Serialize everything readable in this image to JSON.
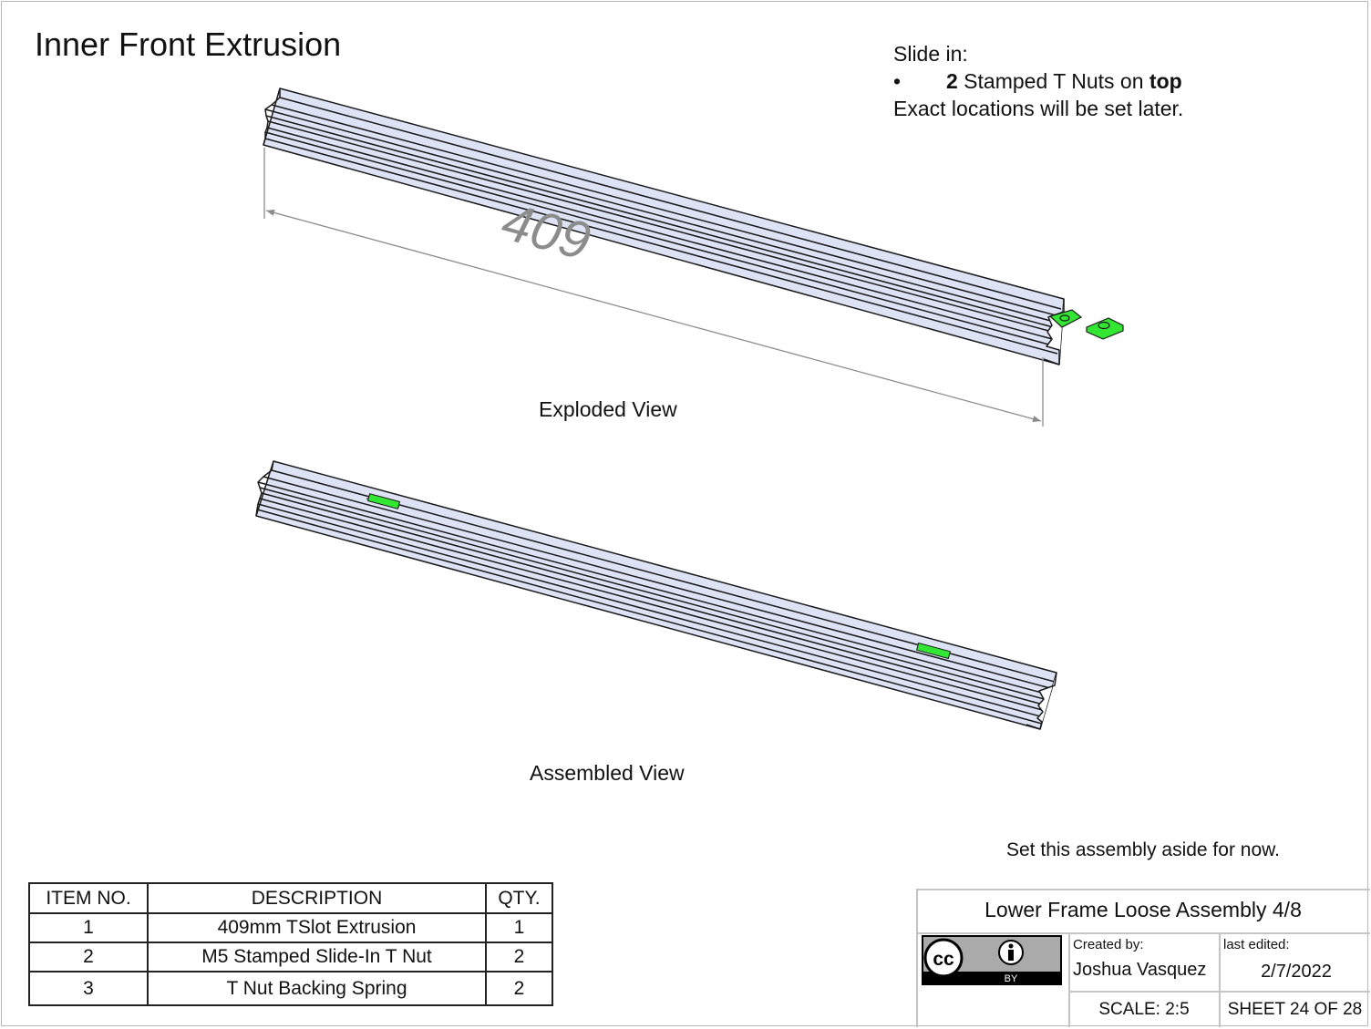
{
  "sheet": {
    "title": "Inner Front Extrusion"
  },
  "instructions": {
    "line1": "Slide in:",
    "bullet": "•",
    "count": "2",
    "item_text": " Stamped T Nuts on ",
    "location": "top",
    "line3": "Exact locations will be set later."
  },
  "views": {
    "exploded_label": "Exploded View",
    "assembled_label": "Assembled View",
    "dimension": "409"
  },
  "note": "Set this assembly aside for now.",
  "bom": {
    "headers": [
      "ITEM NO.",
      "DESCRIPTION",
      "QTY."
    ],
    "rows": [
      [
        "1",
        "409mm TSlot Extrusion",
        "1"
      ],
      [
        "2",
        "M5 Stamped Slide-In T Nut",
        "2"
      ],
      [
        "3",
        "T Nut Backing Spring",
        "2"
      ]
    ]
  },
  "title_block": {
    "title": "Lower Frame Loose Assembly 4/8",
    "created_by_label": "Created by:",
    "created_by": "Joshua Vasquez",
    "last_edited_label": "last edited:",
    "last_edited": "2/7/2022",
    "scale": "SCALE: 2:5",
    "sheet": "SHEET 24 OF 28",
    "license_badge": {
      "cc": "cc",
      "by": "BY",
      "icon": "attribution-person-icon"
    }
  },
  "colors": {
    "extrusion_fill": "#dde3f5",
    "extrusion_edge": "#1a1a1a",
    "tnut": "#33e633",
    "dimension": "#8c8c8c"
  }
}
